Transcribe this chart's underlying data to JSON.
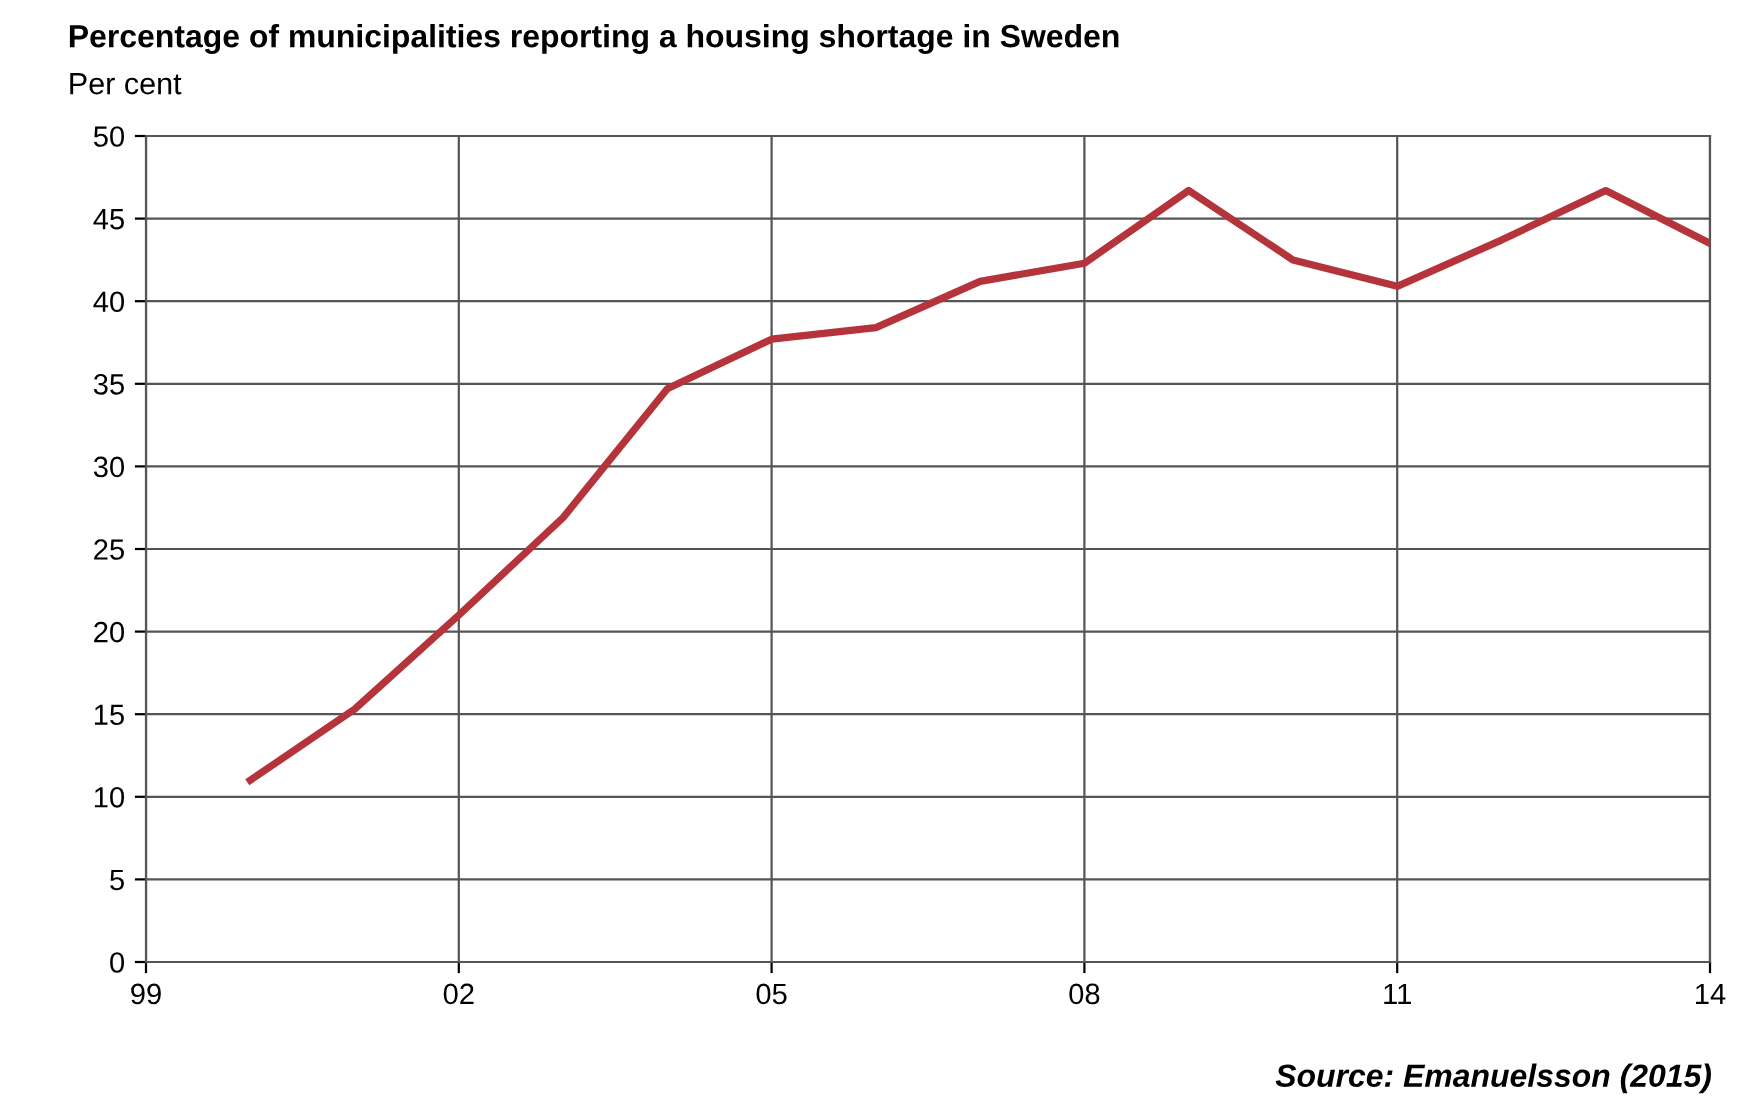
{
  "chart_data": {
    "type": "line",
    "title": "Percentage of municipalities reporting a housing shortage in Sweden",
    "ylabel": "Per cent",
    "x": [
      2000,
      2001,
      2002,
      2003,
      2004,
      2005,
      2006,
      2007,
      2008,
      2009,
      2010,
      2011,
      2012,
      2013,
      2014
    ],
    "series": [
      {
        "color": "#b5333a",
        "values": [
          11.0,
          15.3,
          21.0,
          26.9,
          34.7,
          37.7,
          38.4,
          41.2,
          42.3,
          46.7,
          42.5,
          40.9,
          43.7,
          46.7,
          43.5
        ]
      }
    ],
    "xlim": [
      1999,
      2014
    ],
    "xticks": [
      {
        "value": 1999,
        "label": "99"
      },
      {
        "value": 2002,
        "label": "02"
      },
      {
        "value": 2005,
        "label": "05"
      },
      {
        "value": 2008,
        "label": "08"
      },
      {
        "value": 2011,
        "label": "11"
      },
      {
        "value": 2014,
        "label": "14"
      }
    ],
    "ylim": [
      0,
      50
    ],
    "yticks": [
      0,
      5,
      10,
      15,
      20,
      25,
      30,
      35,
      40,
      45,
      50
    ],
    "grid": true,
    "marker": "none",
    "line_style": "solid",
    "annotations": [
      "Source: Emanuelsson (2015)"
    ]
  }
}
